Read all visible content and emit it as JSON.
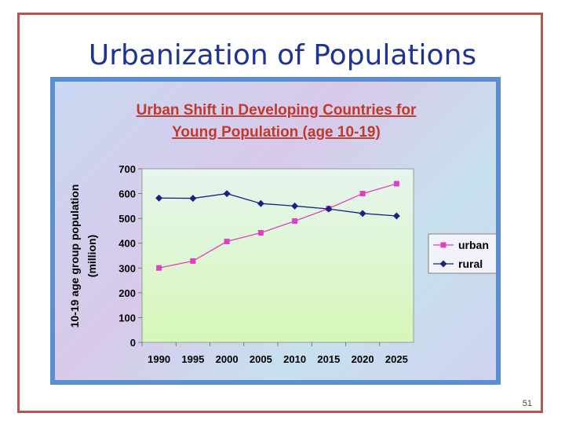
{
  "slide": {
    "title": "Urbanization of Populations",
    "page_number": "51"
  },
  "colors": {
    "border": "#b85450",
    "title_text": "#1f3391",
    "chart_title": "#c0392b",
    "urban": "#e040c0",
    "rural": "#1a237e"
  },
  "chart_data": {
    "type": "line",
    "title": "Urban Shift in Developing Countries for",
    "subtitle": "Young Population (age 10-19)",
    "xlabel": "",
    "ylabel": "10-19 age group population",
    "ylabel_unit": "(million)",
    "x": [
      "1990",
      "1995",
      "2000",
      "2005",
      "2010",
      "2015",
      "2020",
      "2025"
    ],
    "ylim": [
      0,
      700
    ],
    "yticks": [
      "0",
      "100",
      "200",
      "300",
      "400",
      "500",
      "600",
      "700"
    ],
    "grid": false,
    "legend_position": "right",
    "series": [
      {
        "name": "urban",
        "marker": "square",
        "values": [
          300,
          328,
          407,
          442,
          489,
          540,
          600,
          640
        ]
      },
      {
        "name": "rural",
        "marker": "diamond",
        "values": [
          582,
          581,
          600,
          560,
          550,
          538,
          520,
          510
        ]
      }
    ]
  }
}
